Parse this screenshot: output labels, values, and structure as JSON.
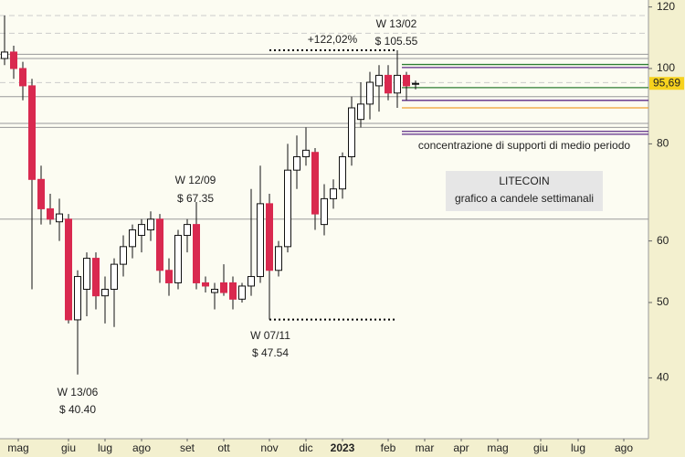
{
  "chart_data": {
    "type": "candlestick",
    "x": [
      0,
      1,
      2,
      3,
      4,
      5,
      6,
      7,
      8,
      9,
      10,
      11,
      12,
      13,
      14,
      15,
      16,
      17,
      18,
      19,
      20,
      21,
      22,
      23,
      24,
      25,
      26,
      27,
      28,
      29,
      30,
      31,
      32,
      33,
      34,
      35,
      36,
      37,
      38,
      39,
      40,
      41,
      42,
      43,
      44,
      45
    ],
    "open": [
      103,
      105,
      100,
      95,
      72,
      66,
      63.5,
      64,
      47.5,
      52,
      57,
      51,
      52,
      56,
      59,
      61,
      62,
      64,
      55,
      53,
      61,
      63,
      53,
      51.5,
      53,
      53,
      50.5,
      52.5,
      54,
      67,
      55,
      59,
      74,
      77,
      78,
      63,
      68,
      70,
      77,
      86,
      90,
      95,
      98,
      93,
      98,
      95.5
    ],
    "high": [
      117,
      107,
      102,
      97,
      75,
      69,
      68,
      65,
      55,
      58,
      58,
      54,
      57,
      61,
      63,
      64,
      65.5,
      65,
      57,
      62,
      64,
      67.35,
      54,
      53,
      56,
      54,
      53,
      70,
      75,
      69,
      60,
      80,
      82,
      84,
      79,
      71,
      72,
      78,
      92,
      96,
      99,
      101,
      101,
      105.55,
      99,
      96.5
    ],
    "low": [
      101,
      97,
      91,
      52,
      63,
      63,
      60,
      47,
      40.4,
      48,
      49,
      47,
      46.5,
      54,
      57,
      58,
      60,
      53,
      51,
      52,
      58,
      52,
      51.5,
      49,
      51,
      49,
      50,
      51,
      53,
      47.54,
      54,
      58,
      70,
      75,
      62,
      61,
      66,
      68,
      75,
      84,
      86,
      88,
      91,
      89,
      91,
      94
    ],
    "close": [
      105,
      100,
      95,
      72,
      66,
      64,
      65,
      47.5,
      54,
      57,
      51,
      52,
      56,
      59,
      62,
      63,
      64,
      55,
      53,
      61,
      63,
      53,
      52.5,
      52,
      51.5,
      50.5,
      52.5,
      54,
      67,
      55,
      59,
      74,
      77,
      78.5,
      65,
      68,
      70,
      77,
      89,
      90,
      96,
      98,
      93,
      98,
      95,
      95.69
    ],
    "up_color": "#ffffff",
    "down_color": "#d9294f",
    "xlim": [
      -0.5,
      70.5
    ],
    "xticks": [
      {
        "value": 1.5,
        "label": "mag"
      },
      {
        "value": 7,
        "label": "giu"
      },
      {
        "value": 11,
        "label": "lug"
      },
      {
        "value": 15,
        "label": "ago"
      },
      {
        "value": 20,
        "label": "set"
      },
      {
        "value": 24,
        "label": "ott"
      },
      {
        "value": 29,
        "label": "nov"
      },
      {
        "value": 33,
        "label": "dic"
      },
      {
        "value": 37,
        "label": "2023"
      },
      {
        "value": 42,
        "label": "feb"
      },
      {
        "value": 46,
        "label": "mar"
      },
      {
        "value": 50,
        "label": "apr"
      },
      {
        "value": 54,
        "label": "mag"
      },
      {
        "value": 58.7,
        "label": "giu"
      },
      {
        "value": 62.8,
        "label": "lug"
      },
      {
        "value": 67.8,
        "label": "ago"
      }
    ],
    "ylim": [
      33.4,
      122.5
    ],
    "yticks": [
      120,
      100,
      80,
      60,
      50,
      40
    ],
    "log": true,
    "levels": [
      {
        "value": 117,
        "color": "#cccccc"
      },
      {
        "value": 111,
        "color": "#cccccc"
      },
      {
        "value": 104.3,
        "color": "#999999"
      },
      {
        "value": 103,
        "color": "#999999"
      },
      {
        "value": 101.2,
        "color": "#2e7d32"
      },
      {
        "value": 100.3,
        "color": "#5b2a86"
      },
      {
        "value": 95.9,
        "color": "#cccccc"
      },
      {
        "value": 94.5,
        "color": "#2e7d32"
      },
      {
        "value": 92,
        "color": "#999999"
      },
      {
        "value": 91,
        "color": "#5b2a86"
      },
      {
        "value": 89,
        "color": "#f0a030"
      },
      {
        "value": 85,
        "color": "#999999"
      },
      {
        "value": 84,
        "color": "#999999"
      },
      {
        "value": 83,
        "color": "#5b2a86"
      },
      {
        "value": 82.3,
        "color": "#5b2a86"
      },
      {
        "value": 64,
        "color": "#999999"
      }
    ],
    "price_tag": {
      "value": 95.69,
      "label": "95,69"
    },
    "annotations": [
      "+122,02%",
      "W 13/02",
      "$ 105.55",
      "W 12/09",
      "$ 67.35",
      "W 07/11",
      "$ 47.54",
      "W 13/06",
      "$ 40.40",
      "concentrazione di supporti di medio periodo"
    ],
    "info_box": [
      "LITECOIN",
      "grafico a candele settimanali"
    ]
  }
}
